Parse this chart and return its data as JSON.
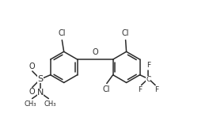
{
  "bg_color": "#ffffff",
  "line_color": "#2a2a2a",
  "line_width": 1.1,
  "font_size": 6.5,
  "fig_width": 2.69,
  "fig_height": 1.58,
  "dpi": 100,
  "xlim": [
    -1.0,
    9.5
  ],
  "ylim": [
    -2.5,
    5.5
  ]
}
